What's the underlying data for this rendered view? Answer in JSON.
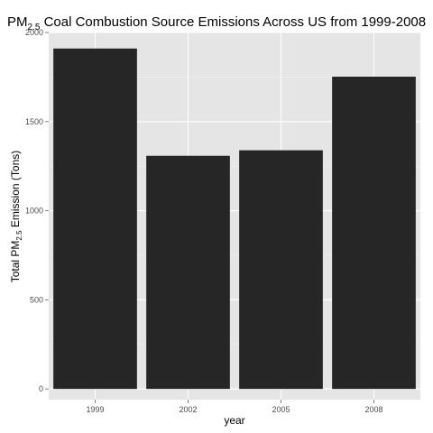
{
  "chart_data": {
    "type": "bar",
    "title": {
      "prefix": "PM",
      "subscript": "2.5",
      "suffix": " Coal Combustion Source Emissions Across US from 1999-2008"
    },
    "xlabel": "year",
    "ylabel": {
      "prefix": "Total PM",
      "subscript": "2.5",
      "suffix": " Emission (Tons)"
    },
    "categories": [
      "1999",
      "2002",
      "2005",
      "2008"
    ],
    "values": [
      1910,
      1308,
      1339,
      1752
    ],
    "ylim": [
      -60,
      2000
    ],
    "yticks": [
      0,
      500,
      1000,
      1500,
      2000
    ],
    "ytick_labels": [
      "0",
      "500",
      "1000",
      "1500",
      "2000"
    ],
    "grid": true,
    "legend": "none",
    "colors": {
      "panel_background": "#e5e5e5",
      "grid_major": "#ffffff",
      "grid_minor": "#f2f2f2",
      "bar_fill": "#262626"
    }
  }
}
